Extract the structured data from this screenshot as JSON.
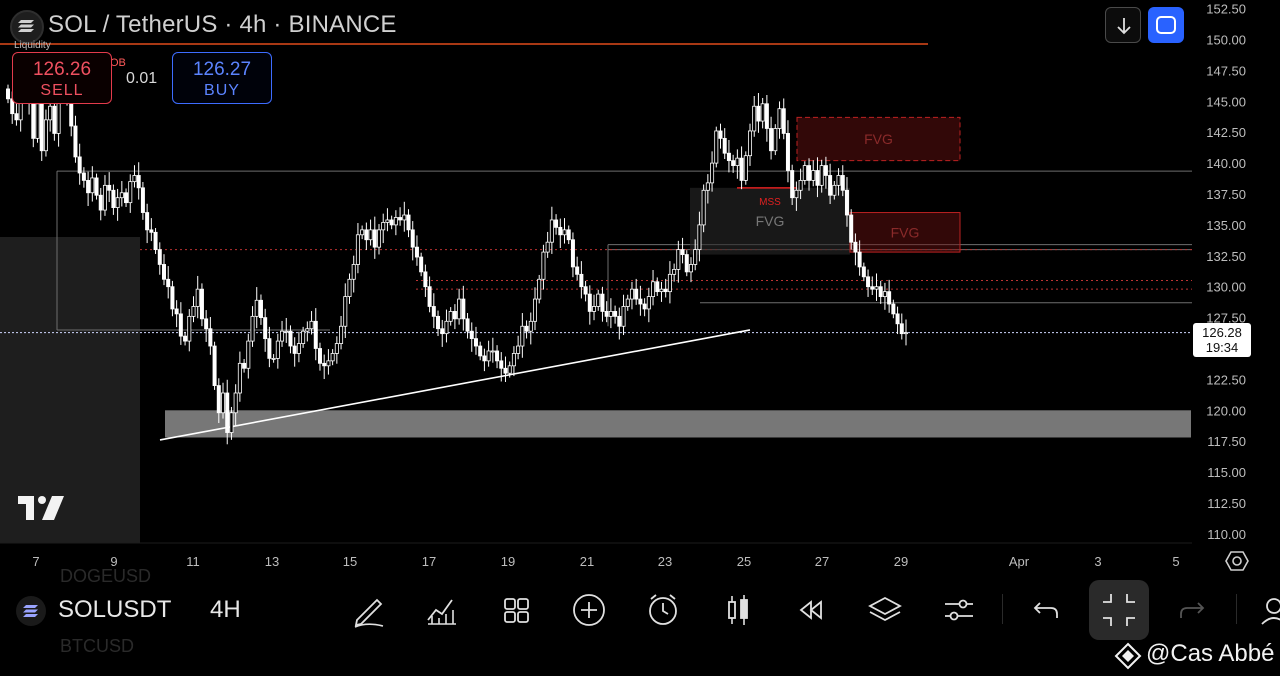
{
  "header": {
    "title": "SOL / TetherUS · 4h · BINANCE",
    "liquidity_label": "Liquidity",
    "ob_label": "OB",
    "spread": "0.01",
    "sell": {
      "price": "126.26",
      "label": "SELL"
    },
    "buy": {
      "price": "126.27",
      "label": "BUY"
    }
  },
  "price_tag": {
    "price": "126.28",
    "countdown": "19:34"
  },
  "bottom_bar": {
    "symbol": "SOLUSDT",
    "timeframe": "4H",
    "ghost_top": "DOGEUSD",
    "ghost_bottom": "BTCUSD",
    "tools": [
      "draw-icon",
      "indicators-icon",
      "layouts-icon",
      "add-icon",
      "alert-icon",
      "replay-candles-icon",
      "rewind-icon",
      "layers-icon",
      "settings-sliders-icon",
      "undo-icon",
      "collapse-icon",
      "redo-icon",
      "profile-icon"
    ]
  },
  "watermark": "@Cas Abbé",
  "colors": {
    "background": "#000000",
    "candle": "#ffffff",
    "sell": "#e33b4c",
    "buy": "#2962ff",
    "fvg": "#8b1a1a",
    "resistance": "#e04a1a",
    "support_zone": "#7a7a7a"
  },
  "chart_data": {
    "type": "candlestick",
    "title": "SOL / TetherUS · 4h · BINANCE",
    "x_ticks": [
      "7",
      "9",
      "11",
      "13",
      "15",
      "17",
      "19",
      "21",
      "23",
      "25",
      "27",
      "29",
      "Apr",
      "3",
      "5"
    ],
    "y_ticks": [
      "152.50",
      "150.00",
      "147.50",
      "145.00",
      "142.50",
      "140.00",
      "137.50",
      "135.00",
      "132.50",
      "130.00",
      "127.50",
      "126.28",
      "122.50",
      "120.00",
      "117.50",
      "115.00",
      "112.50",
      "110.00"
    ],
    "ylim": [
      109.0,
      153.0
    ],
    "last_price": 126.28,
    "annotations": {
      "fvg_labels": [
        "FVG",
        "FVG",
        "FVG"
      ],
      "mss_label": "MSS",
      "resistance_level": 149.8,
      "support_zone": [
        117.8,
        120.0
      ],
      "trendline": {
        "from": {
          "date": "10",
          "price": 117.6
        },
        "to": {
          "date": "25",
          "price": 126.5
        }
      }
    },
    "series": [
      {
        "type": "ohlc",
        "x_label_positions": {
          "7": 36,
          "9": 114,
          "11": 193,
          "13": 272,
          "15": 350,
          "17": 429,
          "19": 508,
          "21": 587,
          "23": 665,
          "25": 744,
          "27": 822,
          "29": 901
        },
        "closes": [
          145.2,
          144.0,
          143.5,
          146.8,
          147.5,
          145.0,
          142.0,
          144.8,
          141.0,
          143.5,
          144.6,
          142.4,
          145.5,
          146.2,
          145.0,
          143.0,
          140.5,
          139.2,
          138.6,
          137.6,
          138.8,
          137.4,
          136.2,
          138.2,
          137.8,
          136.4,
          137.2,
          137.6,
          136.8,
          138.5,
          139.0,
          138.0,
          136.0,
          134.6,
          134.4,
          133.0,
          131.8,
          130.6,
          130.0,
          128.2,
          127.8,
          126.0,
          125.6,
          127.6,
          128.4,
          129.8,
          127.4,
          126.6,
          125.2,
          122.0,
          119.8,
          121.4,
          118.2,
          119.8,
          121.4,
          123.8,
          123.4,
          125.6,
          127.6,
          128.9,
          127.5,
          125.8,
          124.2,
          124.2,
          125.6,
          126.4,
          126.4,
          125.2,
          124.6,
          125.4,
          126.4,
          126.6,
          127.2,
          125.0,
          123.8,
          123.6,
          124.0,
          124.6,
          125.4,
          126.8,
          129.2,
          130.6,
          131.8,
          134.2,
          134.6,
          133.8,
          134.6,
          133.2,
          134.6,
          135.2,
          135.4,
          135.0,
          135.6,
          135.4,
          135.8,
          134.6,
          133.2,
          132.4,
          131.2,
          130.0,
          128.4,
          127.6,
          126.6,
          126.2,
          127.2,
          128.0,
          127.4,
          129.0,
          127.4,
          126.4,
          125.8,
          125.2,
          124.4,
          124.0,
          124.8,
          124.8,
          124.0,
          123.4,
          123.0,
          123.6,
          124.6,
          125.2,
          126.8,
          126.4,
          127.2,
          129.0,
          130.6,
          132.8,
          133.6,
          135.4,
          134.8,
          134.2,
          134.6,
          133.8,
          131.6,
          131.0,
          130.0,
          129.4,
          128.0,
          128.4,
          129.4,
          128.0,
          127.6,
          128.0,
          127.6,
          126.8,
          128.4,
          129.0,
          129.8,
          129.0,
          128.6,
          128.2,
          129.2,
          130.4,
          129.6,
          129.8,
          129.6,
          131.0,
          131.4,
          133.0,
          132.6,
          131.2,
          131.8,
          133.0,
          135.0,
          137.8,
          138.4,
          140.0,
          142.6,
          142.0,
          140.8,
          140.2,
          139.8,
          140.4,
          138.6,
          140.6,
          142.6,
          144.6,
          143.4,
          144.8,
          142.8,
          141.0,
          142.8,
          144.4,
          142.4,
          139.4,
          137.2,
          137.8,
          138.6,
          139.8,
          138.6,
          139.4,
          138.2,
          139.8,
          139.0,
          137.4,
          138.2,
          139.0,
          137.8,
          135.8,
          133.6,
          132.8,
          131.6,
          130.8,
          130.0,
          129.8,
          130.0,
          129.2,
          129.6,
          128.6,
          127.8,
          127.0,
          126.2,
          126.28
        ]
      }
    ]
  }
}
